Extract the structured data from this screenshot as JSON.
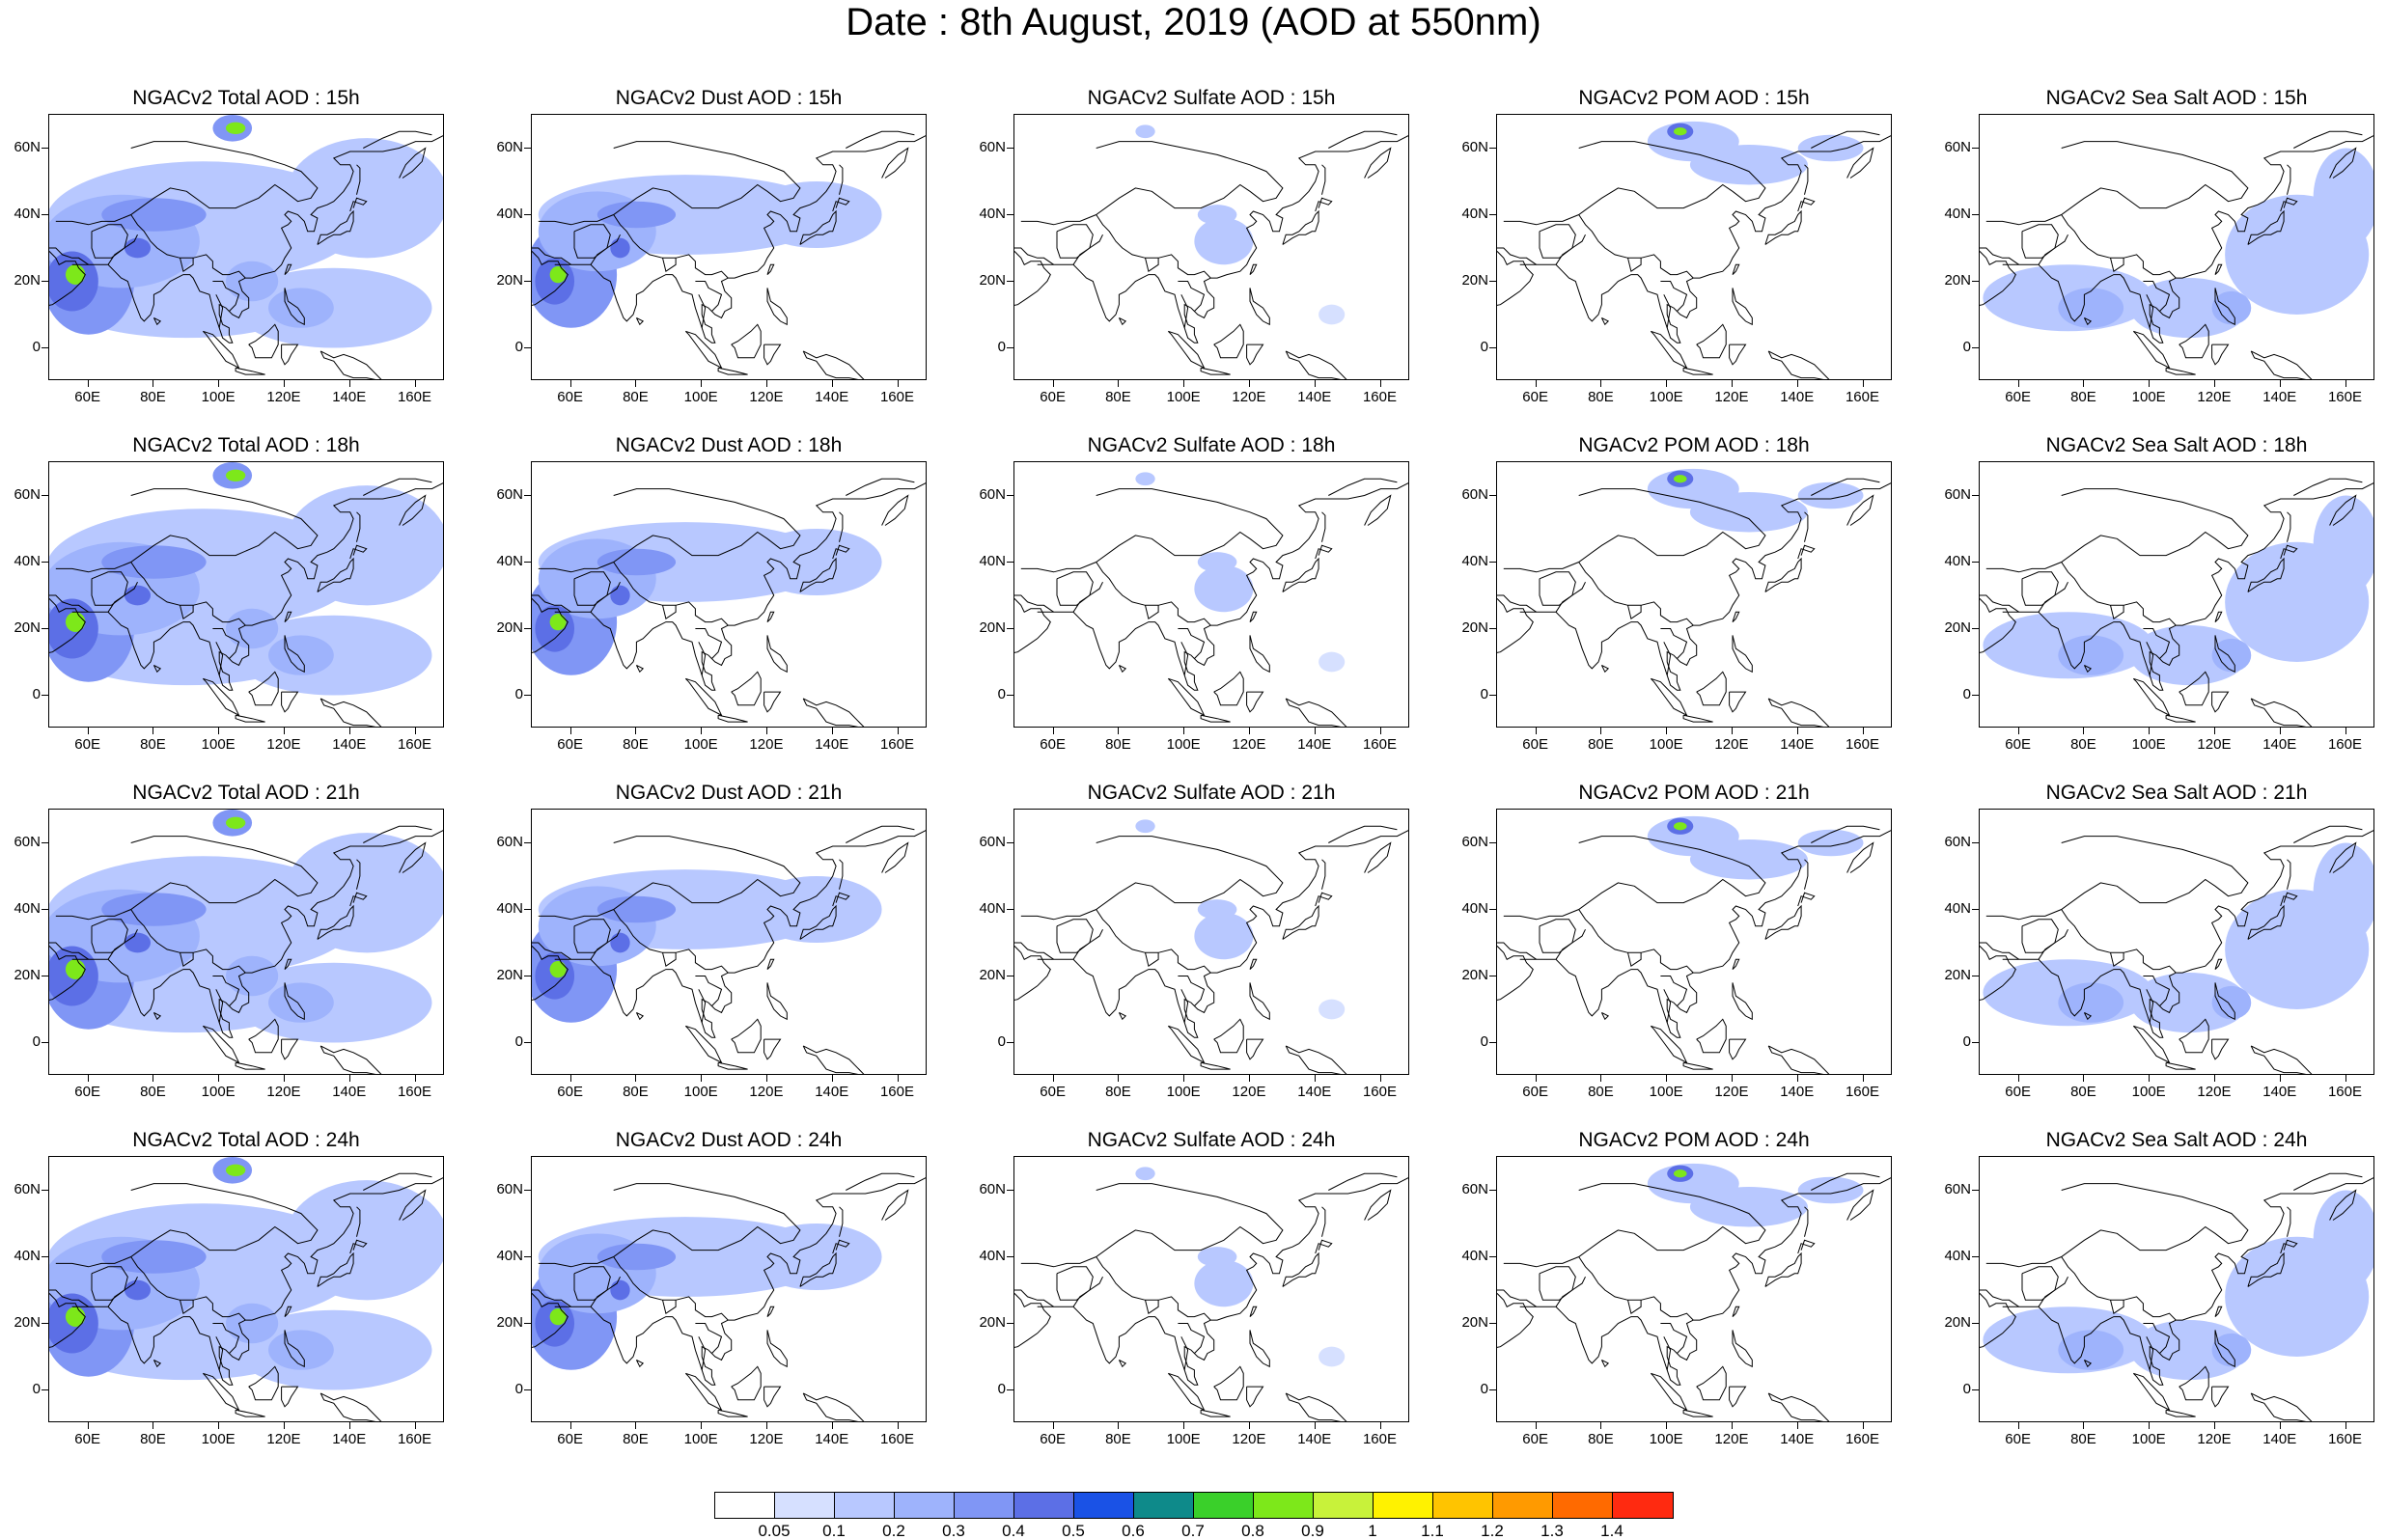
{
  "title": "Date : 8th August, 2019 (AOD at 550nm)",
  "lon_labels": [
    "60E",
    "80E",
    "100E",
    "120E",
    "140E",
    "160E"
  ],
  "lat_labels": [
    "60N",
    "40N",
    "20N",
    "0"
  ],
  "panels": [
    {
      "title": "NGACv2 Total AOD : 15h",
      "species": "total",
      "hour": "15h"
    },
    {
      "title": "NGACv2 Dust AOD : 15h",
      "species": "dust",
      "hour": "15h"
    },
    {
      "title": "NGACv2 Sulfate AOD : 15h",
      "species": "sulfate",
      "hour": "15h"
    },
    {
      "title": "NGACv2 POM AOD : 15h",
      "species": "pom",
      "hour": "15h"
    },
    {
      "title": "NGACv2 Sea Salt AOD : 15h",
      "species": "seasalt",
      "hour": "15h"
    },
    {
      "title": "NGACv2 Total AOD : 18h",
      "species": "total",
      "hour": "18h"
    },
    {
      "title": "NGACv2 Dust AOD : 18h",
      "species": "dust",
      "hour": "18h"
    },
    {
      "title": "NGACv2 Sulfate AOD : 18h",
      "species": "sulfate",
      "hour": "18h"
    },
    {
      "title": "NGACv2 POM AOD : 18h",
      "species": "pom",
      "hour": "18h"
    },
    {
      "title": "NGACv2 Sea Salt AOD : 18h",
      "species": "seasalt",
      "hour": "18h"
    },
    {
      "title": "NGACv2 Total AOD : 21h",
      "species": "total",
      "hour": "21h"
    },
    {
      "title": "NGACv2 Dust AOD : 21h",
      "species": "dust",
      "hour": "21h"
    },
    {
      "title": "NGACv2 Sulfate AOD : 21h",
      "species": "sulfate",
      "hour": "21h"
    },
    {
      "title": "NGACv2 POM AOD : 21h",
      "species": "pom",
      "hour": "21h"
    },
    {
      "title": "NGACv2 Sea Salt AOD : 21h",
      "species": "seasalt",
      "hour": "21h"
    },
    {
      "title": "NGACv2 Total AOD : 24h",
      "species": "total",
      "hour": "24h"
    },
    {
      "title": "NGACv2 Dust AOD : 24h",
      "species": "dust",
      "hour": "24h"
    },
    {
      "title": "NGACv2 Sulfate AOD : 24h",
      "species": "sulfate",
      "hour": "24h"
    },
    {
      "title": "NGACv2 POM AOD : 24h",
      "species": "pom",
      "hour": "24h"
    },
    {
      "title": "NGACv2 Sea Salt  AOD : 24h",
      "species": "seasalt",
      "hour": "24h"
    }
  ],
  "colorbar": {
    "labels": [
      "0.05",
      "0.1",
      "0.2",
      "0.3",
      "0.4",
      "0.5",
      "0.6",
      "0.7",
      "0.8",
      "0.9",
      "1",
      "1.1",
      "1.2",
      "1.3",
      "1.4"
    ],
    "colors": [
      "#ffffff",
      "#d6e0ff",
      "#b8c8ff",
      "#9eb3fc",
      "#8096f5",
      "#5c6fe6",
      "#1a52e6",
      "#0e8a8a",
      "#3ad02a",
      "#7de81a",
      "#c8f23a",
      "#fff200",
      "#ffc400",
      "#ff9a00",
      "#ff6a00",
      "#ff2a10"
    ]
  }
}
